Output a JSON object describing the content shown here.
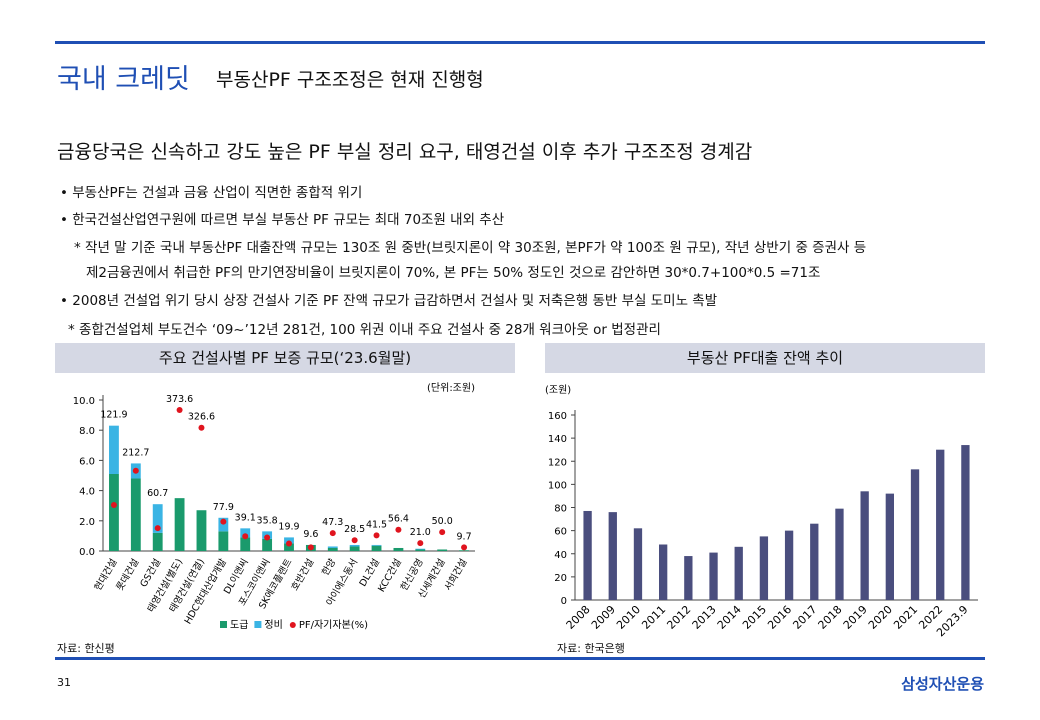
{
  "header": {
    "title": "국내 크레딧",
    "subtitle": "부동산PF 구조조정은 현재 진행형"
  },
  "headline": "금융당국은 신속하고 강도 높은 PF 부실 정리 요구, 태영건설 이후 추가 구조조정 경계감",
  "body": {
    "bullets": [
      "부동산PF는 건설과 금융 산업이 직면한 종합적 위기",
      "한국건설산업연구원에 따르면 부실 부동산 PF 규모는 최대 70조원 내외 추산",
      "2008년 건설업 위기 당시 상장 건설사 기준 PF 잔액 규모가 급감하면서 건설사 및 저축은행 동반 부실 도미노 촉발"
    ],
    "notes": [
      [
        "작년 말 기준 국내 부동산PF 대출잔액 규모는 130조 원 중반(브릿지론이 약 30조원, 본PF가 약 100조 원 규모),  작년 상반기 중 증권사 등",
        "제2금융권에서 취급한 PF의 만기연장비율이 브릿지론이 70%, 본 PF는 50% 정도인 것으로 감안하면 30*0.7+100*0.5 =71조"
      ],
      [
        "종합건설업체 부도건수 ‘09~’12년 281건, 100 위권 이내 주요 건설사 중 28개 워크아웃 or 법정관리"
      ]
    ]
  },
  "chart_data": [
    {
      "type": "bar",
      "stacked": true,
      "title": "주요 건설사별 PF 보증 규모(‘23.6월말)",
      "unit": "(단위:조원)",
      "categories": [
        "현대건설",
        "롯데건설",
        "GS건설",
        "태영건설(별도)",
        "태영건설(연결)",
        "HDC현대산업개발",
        "DL이앤씨",
        "포스코이앤씨",
        "SK에코플랜트",
        "호반건설",
        "한양",
        "아이에스동서",
        "DL건설",
        "KCC건설",
        "한신공영",
        "신세계건설",
        "서희건설"
      ],
      "series": [
        {
          "name": "도급",
          "color": "#1a9a6c",
          "values": [
            5.1,
            4.8,
            1.2,
            3.5,
            2.7,
            1.3,
            0.9,
            0.8,
            0.5,
            0.4,
            0.2,
            0.3,
            0.35,
            0.2,
            0.1,
            0.1,
            0.05
          ]
        },
        {
          "name": "정비",
          "color": "#3ab4e4",
          "values": [
            3.2,
            1.0,
            1.9,
            0,
            0,
            0.9,
            0.6,
            0.5,
            0.4,
            0,
            0.1,
            0.1,
            0.05,
            0,
            0.05,
            0,
            0
          ]
        },
        {
          "name": "PF/자기자본(%)",
          "type": "scatter",
          "axis": "y2",
          "color": "#e0141e",
          "values": [
            121.9,
            212.7,
            60.7,
            373.6,
            326.6,
            77.9,
            39.1,
            35.8,
            19.9,
            9.6,
            47.3,
            28.5,
            41.5,
            56.4,
            21.0,
            50.0,
            9.7
          ],
          "value_labels": [
            "121.9",
            "212.7",
            "60.7",
            "373.6",
            "326.6",
            "77.9",
            "39.1",
            "35.8",
            "19.9",
            "9.6",
            "47.3",
            "28.5",
            "41.5",
            "56.4",
            "21.0",
            "50.0",
            "9.7"
          ]
        }
      ],
      "ylim": [
        0,
        10
      ],
      "y2lim": [
        0,
        400
      ],
      "yticks": [
        {
          "value": 0,
          "label": "0.0"
        },
        {
          "value": 2,
          "label": "2.0"
        },
        {
          "value": 4,
          "label": "4.0"
        },
        {
          "value": 6,
          "label": "6.0"
        },
        {
          "value": 8,
          "label": "8.0"
        },
        {
          "value": 10,
          "label": "10.0"
        }
      ],
      "source": "자료: 한신평"
    },
    {
      "type": "bar",
      "title": "부동산 PF대출 잔액 추이",
      "unit": "(조원)",
      "categories": [
        "2008",
        "2009",
        "2010",
        "2011",
        "2012",
        "2013",
        "2014",
        "2015",
        "2016",
        "2017",
        "2018",
        "2019",
        "2020",
        "2021",
        "2022",
        "2023.9"
      ],
      "series": [
        {
          "name": null,
          "color": "#4a4e7e",
          "values": [
            77,
            76,
            62,
            48,
            38,
            41,
            46,
            55,
            60,
            66,
            79,
            94,
            92,
            113,
            130,
            134
          ]
        }
      ],
      "ylim": [
        0,
        160
      ],
      "yticks": [
        0,
        20,
        40,
        60,
        80,
        100,
        120,
        140,
        160
      ],
      "source": "자료: 한국은행"
    }
  ],
  "footer": {
    "page": "31",
    "company": "삼성자산운용"
  }
}
